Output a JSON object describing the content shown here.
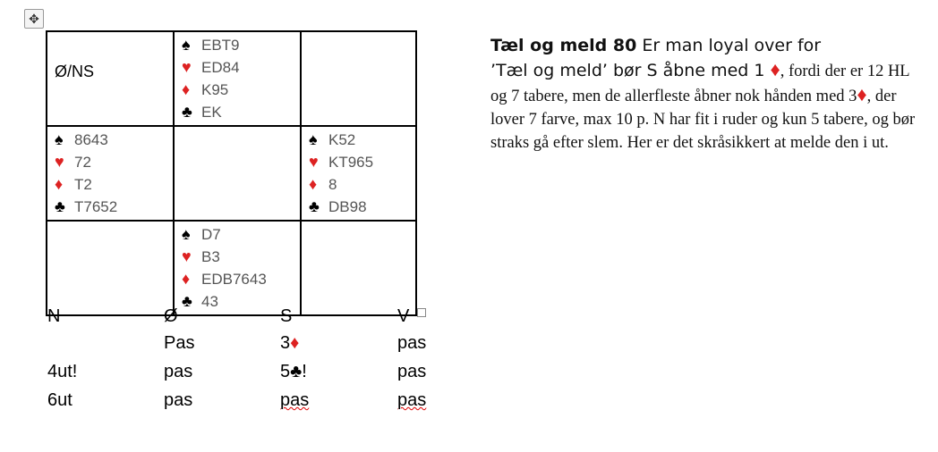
{
  "deal": {
    "vulnerability": "Ø/NS",
    "north": [
      {
        "suit": "spade",
        "cards": "EBT9"
      },
      {
        "suit": "heart",
        "cards": "ED84"
      },
      {
        "suit": "diamond",
        "cards": "K95"
      },
      {
        "suit": "club",
        "cards": "EK"
      }
    ],
    "west": [
      {
        "suit": "spade",
        "cards": "8643"
      },
      {
        "suit": "heart",
        "cards": "72"
      },
      {
        "suit": "diamond",
        "cards": "T2"
      },
      {
        "suit": "club",
        "cards": "T7652"
      }
    ],
    "east": [
      {
        "suit": "spade",
        "cards": "K52"
      },
      {
        "suit": "heart",
        "cards": "KT965"
      },
      {
        "suit": "diamond",
        "cards": "8"
      },
      {
        "suit": "club",
        "cards": "DB98"
      }
    ],
    "south": [
      {
        "suit": "spade",
        "cards": "D7"
      },
      {
        "suit": "heart",
        "cards": "B3"
      },
      {
        "suit": "diamond",
        "cards": "EDB7643"
      },
      {
        "suit": "club",
        "cards": "43"
      }
    ],
    "suit_symbols": {
      "spade": "♠",
      "heart": "♥",
      "diamond": "♦",
      "club": "♣"
    }
  },
  "bidding": {
    "headers": [
      "N",
      "Ø",
      "S",
      "V"
    ],
    "rows": [
      [
        "",
        "Pas",
        "3♦",
        "pas"
      ],
      [
        "4ut!",
        "pas",
        "5♣!",
        "pas"
      ],
      [
        "6ut",
        "pas",
        "pas",
        "pas"
      ]
    ]
  },
  "article": {
    "title": "Tæl og meld 80",
    "sans_text_1": " Er man loyal over for",
    "sans_text_2": "’Tæl og meld’ bør S åbne med 1 ",
    "diamond": "♦",
    "serif_text_1": ", fordi der er 12 HL og 7 tabere, men de allerfleste åbner nok hånden med 3",
    "serif_text_2": ", der lover 7 farve, max 10 p. N har fit i ruder og kun 5 tabere, og bør straks gå efter slem. Her er det skråsikkert at melde den i ut."
  },
  "colors": {
    "red_suit": "#dd2222",
    "black_suit": "#000000",
    "card_text": "#555555"
  }
}
